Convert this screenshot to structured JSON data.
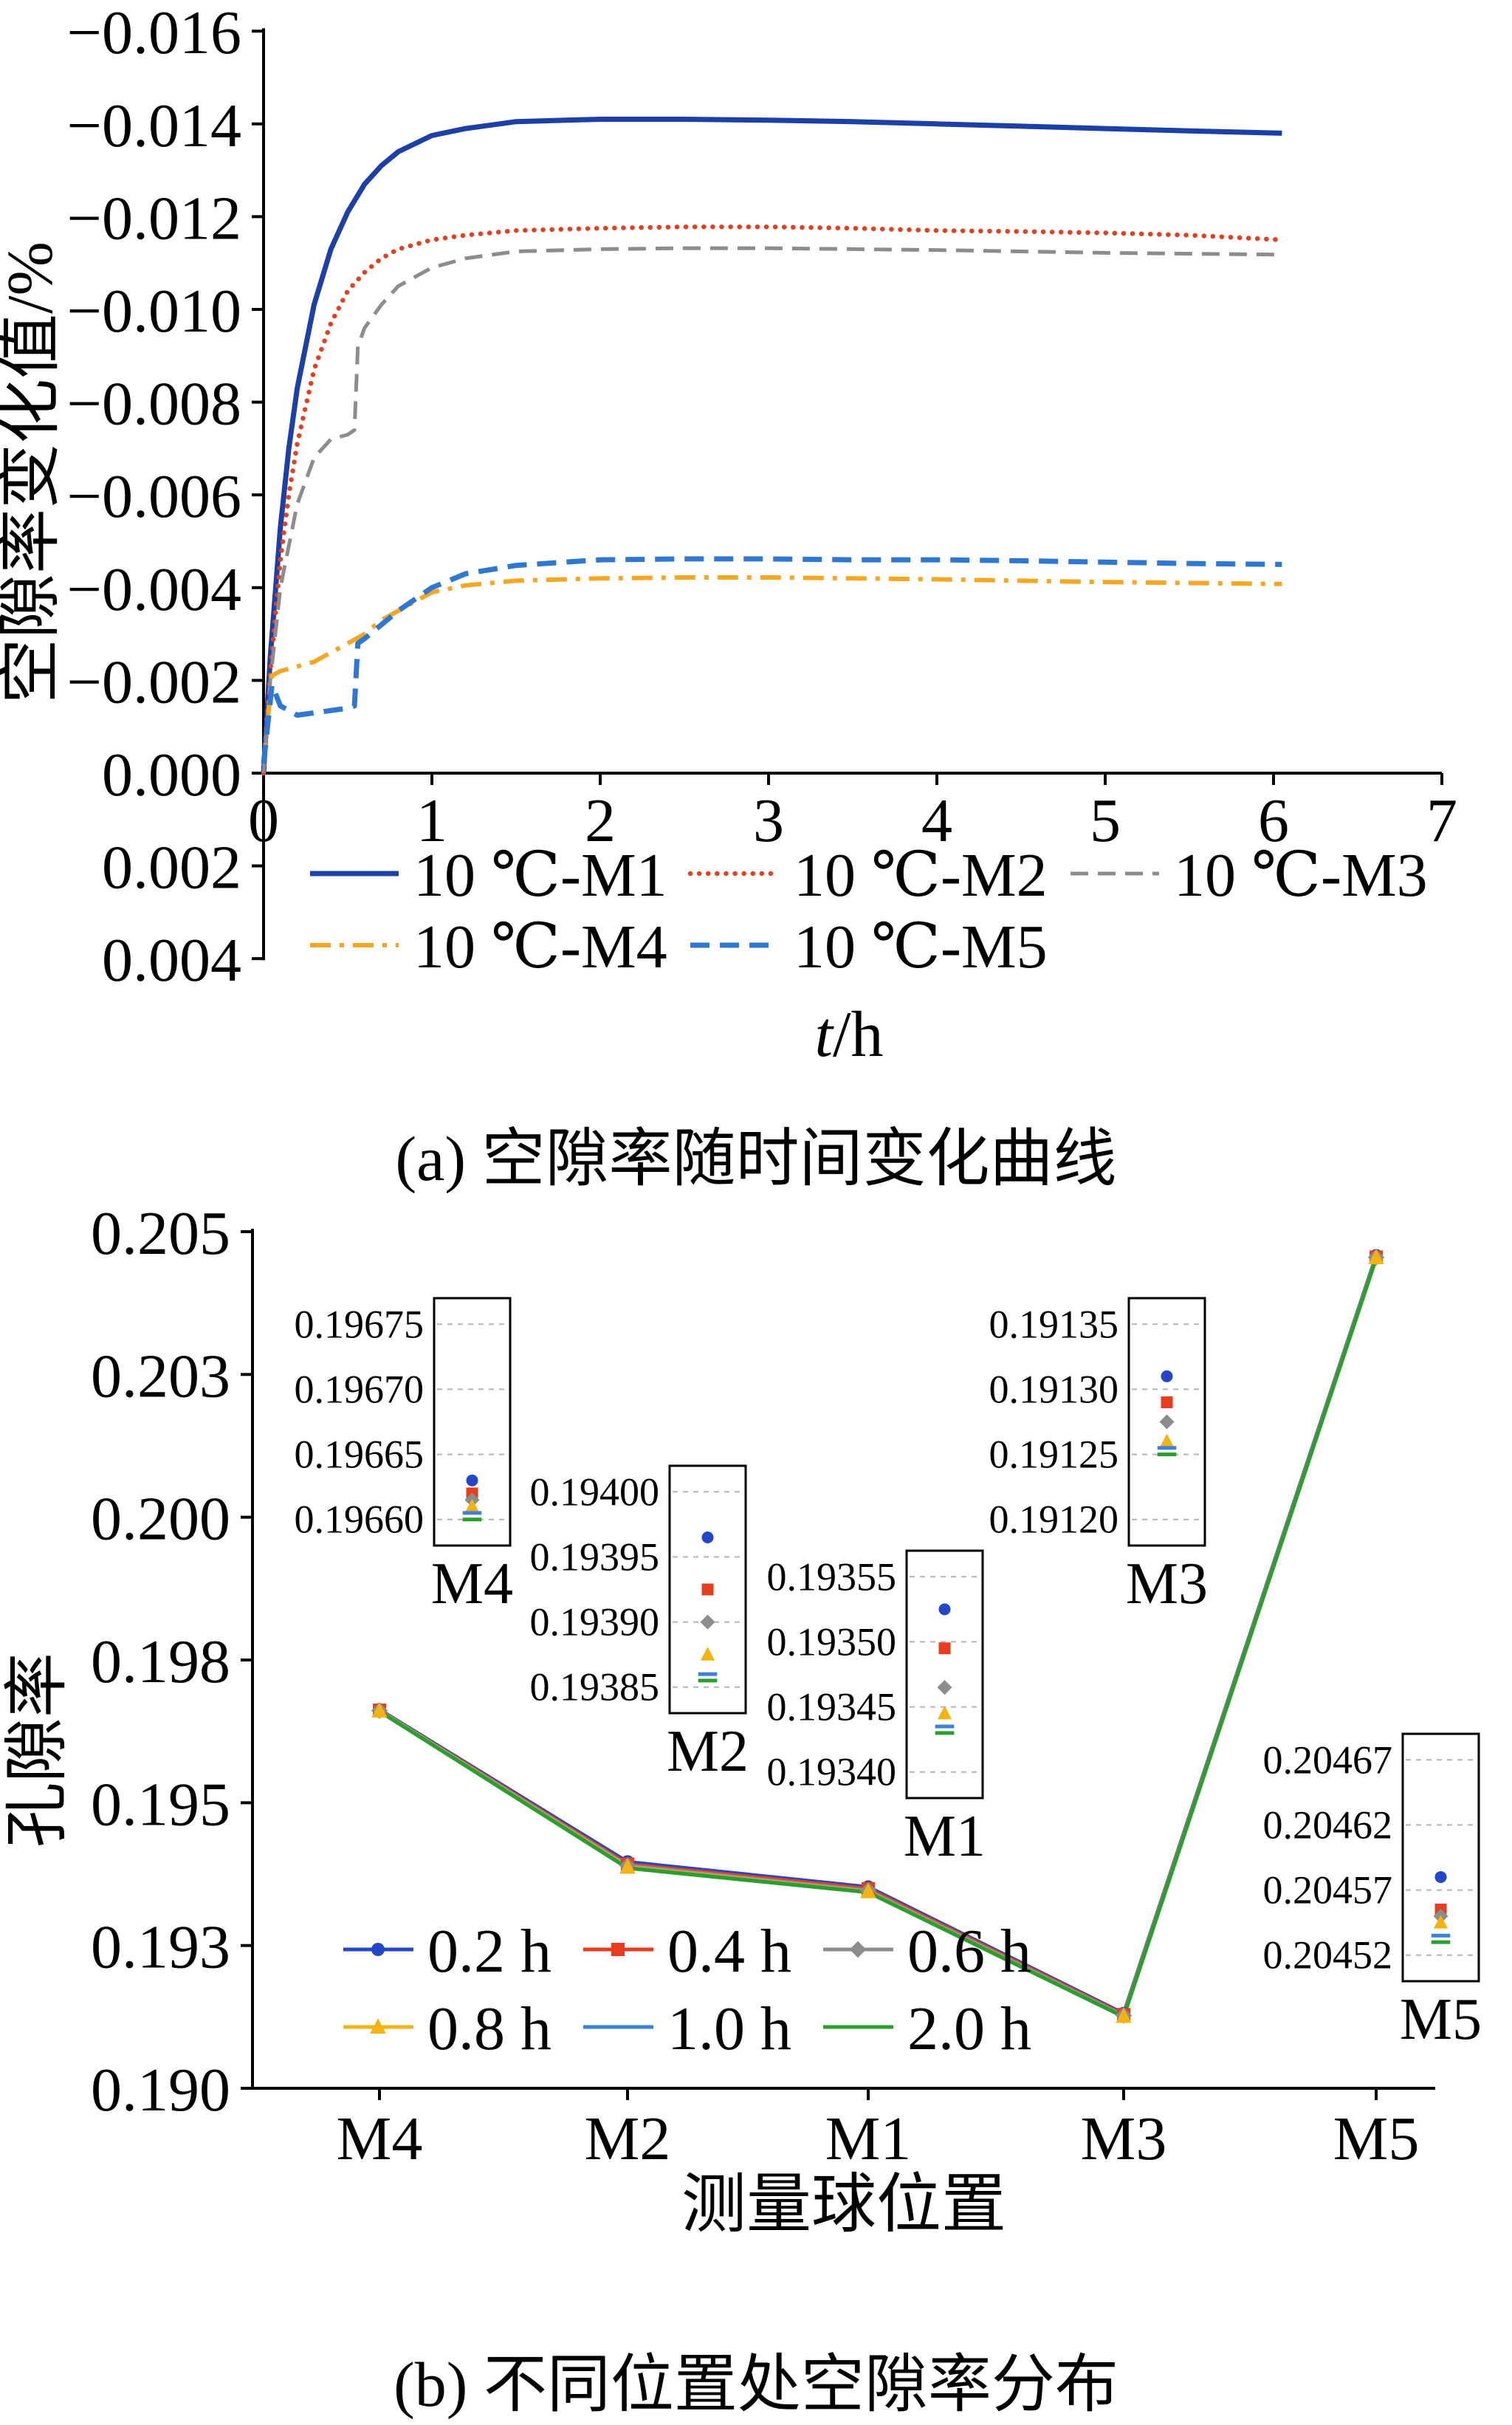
{
  "page": {
    "background": "#ffffff"
  },
  "captions": {
    "a": "(a) 空隙率随时间变化曲线",
    "b": "(b) 不同位置处空隙率分布"
  },
  "chart_data": [
    {
      "type": "line",
      "name": "porosity-change-vs-time",
      "ylabel": "空隙率变化值/%",
      "xlabel_parts": [
        {
          "text": "t",
          "italic": true
        },
        {
          "text": "/h",
          "italic": false
        }
      ],
      "xlim": [
        0,
        7
      ],
      "y_axis_inverted": true,
      "x_ticks": [
        0,
        1,
        2,
        3,
        4,
        5,
        6,
        7
      ],
      "y_ticks": [
        {
          "v": -0.016,
          "label": "−0.016"
        },
        {
          "v": -0.014,
          "label": "−0.014"
        },
        {
          "v": -0.012,
          "label": "−0.012"
        },
        {
          "v": -0.01,
          "label": "−0.010"
        },
        {
          "v": -0.008,
          "label": "−0.008"
        },
        {
          "v": -0.006,
          "label": "−0.006"
        },
        {
          "v": -0.004,
          "label": "−0.004"
        },
        {
          "v": -0.002,
          "label": "−0.002"
        },
        {
          "v": 0.0,
          "label": "0.000"
        },
        {
          "v": 0.002,
          "label": "0.002"
        },
        {
          "v": 0.004,
          "label": "0.004"
        }
      ],
      "series": [
        {
          "name": "10 ℃-M1",
          "color": "#1c3fa8",
          "style": "solid",
          "width": 7,
          "points": [
            [
              0,
              0
            ],
            [
              0.04,
              -0.0025
            ],
            [
              0.1,
              -0.0053
            ],
            [
              0.15,
              -0.007
            ],
            [
              0.2,
              -0.0083
            ],
            [
              0.3,
              -0.0101
            ],
            [
              0.4,
              -0.0113
            ],
            [
              0.5,
              -0.0121
            ],
            [
              0.6,
              -0.0127
            ],
            [
              0.7,
              -0.0131
            ],
            [
              0.8,
              -0.0134
            ],
            [
              1.0,
              -0.01375
            ],
            [
              1.2,
              -0.0139
            ],
            [
              1.5,
              -0.01405
            ],
            [
              2.0,
              -0.0141
            ],
            [
              2.5,
              -0.0141
            ],
            [
              3.0,
              -0.01408
            ],
            [
              3.5,
              -0.01405
            ],
            [
              4.0,
              -0.014
            ],
            [
              4.5,
              -0.01395
            ],
            [
              5.0,
              -0.0139
            ],
            [
              5.5,
              -0.01385
            ],
            [
              6.05,
              -0.0138
            ]
          ]
        },
        {
          "name": "10 ℃-M2",
          "color": "#e34020",
          "style": "dotted",
          "width": 6.5,
          "points": [
            [
              0,
              0
            ],
            [
              0.04,
              -0.0022
            ],
            [
              0.1,
              -0.0046
            ],
            [
              0.15,
              -0.006
            ],
            [
              0.2,
              -0.0071
            ],
            [
              0.3,
              -0.0087
            ],
            [
              0.4,
              -0.0097
            ],
            [
              0.5,
              -0.0104
            ],
            [
              0.6,
              -0.0108
            ],
            [
              0.7,
              -0.0111
            ],
            [
              0.8,
              -0.0113
            ],
            [
              1.0,
              -0.0115
            ],
            [
              1.2,
              -0.0116
            ],
            [
              1.5,
              -0.0117
            ],
            [
              2.0,
              -0.01175
            ],
            [
              2.5,
              -0.01178
            ],
            [
              3.0,
              -0.01178
            ],
            [
              3.5,
              -0.01175
            ],
            [
              4.0,
              -0.0117
            ],
            [
              4.5,
              -0.01168
            ],
            [
              5.0,
              -0.01165
            ],
            [
              5.5,
              -0.0116
            ],
            [
              6.05,
              -0.0115
            ]
          ]
        },
        {
          "name": "10 ℃-M3",
          "color": "#8c8c8c",
          "style": "dashed",
          "width": 5,
          "points": [
            [
              0,
              0
            ],
            [
              0.04,
              -0.002
            ],
            [
              0.1,
              -0.004
            ],
            [
              0.2,
              -0.0058
            ],
            [
              0.3,
              -0.0068
            ],
            [
              0.4,
              -0.0072
            ],
            [
              0.5,
              -0.0073
            ],
            [
              0.54,
              -0.0074
            ],
            [
              0.56,
              -0.0092
            ],
            [
              0.6,
              -0.0096
            ],
            [
              0.7,
              -0.0101
            ],
            [
              0.8,
              -0.0105
            ],
            [
              1.0,
              -0.0109
            ],
            [
              1.2,
              -0.0111
            ],
            [
              1.5,
              -0.01125
            ],
            [
              2.0,
              -0.0113
            ],
            [
              2.5,
              -0.01132
            ],
            [
              3.0,
              -0.01132
            ],
            [
              3.5,
              -0.0113
            ],
            [
              4.0,
              -0.01128
            ],
            [
              4.5,
              -0.01125
            ],
            [
              5.0,
              -0.01122
            ],
            [
              5.5,
              -0.0112
            ],
            [
              6.05,
              -0.01118
            ]
          ]
        },
        {
          "name": "10 ℃-M4",
          "color": "#f5a623",
          "style": "dashdot",
          "width": 6,
          "points": [
            [
              0,
              -0.0002
            ],
            [
              0.05,
              -0.0021
            ],
            [
              0.1,
              -0.0022
            ],
            [
              0.2,
              -0.0023
            ],
            [
              0.3,
              -0.0024
            ],
            [
              0.4,
              -0.0026
            ],
            [
              0.5,
              -0.0028
            ],
            [
              0.6,
              -0.003
            ],
            [
              0.7,
              -0.0033
            ],
            [
              0.8,
              -0.0035
            ],
            [
              0.9,
              -0.0037
            ],
            [
              1.0,
              -0.0039
            ],
            [
              1.2,
              -0.00405
            ],
            [
              1.5,
              -0.00415
            ],
            [
              2.0,
              -0.0042
            ],
            [
              2.5,
              -0.00422
            ],
            [
              3.0,
              -0.00422
            ],
            [
              3.5,
              -0.0042
            ],
            [
              4.0,
              -0.00418
            ],
            [
              4.5,
              -0.00415
            ],
            [
              5.0,
              -0.00412
            ],
            [
              5.5,
              -0.0041
            ],
            [
              6.05,
              -0.00408
            ]
          ]
        },
        {
          "name": "10 ℃-M5",
          "color": "#2e78d2",
          "style": "dashed2",
          "width": 7,
          "points": [
            [
              0,
              -0.0002
            ],
            [
              0.05,
              -0.0019
            ],
            [
              0.1,
              -0.00145
            ],
            [
              0.2,
              -0.00125
            ],
            [
              0.3,
              -0.0013
            ],
            [
              0.4,
              -0.00135
            ],
            [
              0.5,
              -0.0014
            ],
            [
              0.54,
              -0.00145
            ],
            [
              0.56,
              -0.0028
            ],
            [
              0.6,
              -0.0029
            ],
            [
              0.7,
              -0.0032
            ],
            [
              0.8,
              -0.0035
            ],
            [
              1.0,
              -0.004
            ],
            [
              1.2,
              -0.0043
            ],
            [
              1.5,
              -0.00448
            ],
            [
              2.0,
              -0.0046
            ],
            [
              2.5,
              -0.00462
            ],
            [
              3.0,
              -0.00462
            ],
            [
              3.5,
              -0.0046
            ],
            [
              4.0,
              -0.0046
            ],
            [
              4.5,
              -0.00458
            ],
            [
              5.0,
              -0.00455
            ],
            [
              5.5,
              -0.00452
            ],
            [
              6.05,
              -0.0045
            ]
          ]
        }
      ]
    },
    {
      "type": "line",
      "name": "porosity-distribution-by-position",
      "ylabel": "孔隙率",
      "xlabel": "测量球位置",
      "categories": [
        "M4",
        "M2",
        "M1",
        "M3",
        "M5"
      ],
      "ylim": [
        0.19,
        0.205
      ],
      "y_ticks": [
        {
          "v": 0.205,
          "label": "0.205"
        },
        {
          "v": 0.2025,
          "label": "0.203"
        },
        {
          "v": 0.2,
          "label": "0.200"
        },
        {
          "v": 0.1975,
          "label": "0.198"
        },
        {
          "v": 0.195,
          "label": "0.195"
        },
        {
          "v": 0.1925,
          "label": "0.193"
        },
        {
          "v": 0.19,
          "label": "0.190"
        }
      ],
      "series": [
        {
          "name": "0.2 h",
          "color": "#2446c8",
          "marker": "circle",
          "values": [
            0.19663,
            0.193965,
            0.193525,
            0.19131,
            0.20458
          ]
        },
        {
          "name": "0.4 h",
          "color": "#e83c1e",
          "marker": "square",
          "values": [
            0.19662,
            0.193925,
            0.193495,
            0.19129,
            0.204555
          ]
        },
        {
          "name": "0.6 h",
          "color": "#8c8c8c",
          "marker": "diamond",
          "values": [
            0.196615,
            0.1939,
            0.193465,
            0.191275,
            0.20455
          ]
        },
        {
          "name": "0.8 h",
          "color": "#f2b313",
          "marker": "triangle",
          "values": [
            0.19661,
            0.193875,
            0.193445,
            0.19126,
            0.204545
          ]
        },
        {
          "name": "1.0 h",
          "color": "#3c80d8",
          "marker": "line",
          "values": [
            0.196605,
            0.19386,
            0.193435,
            0.191255,
            0.204535
          ]
        },
        {
          "name": "2.0 h",
          "color": "#2aa02c",
          "marker": "line",
          "values": [
            0.1966,
            0.193855,
            0.19343,
            0.19125,
            0.20453
          ]
        }
      ],
      "inset_label_color": "#e60000",
      "insets": [
        {
          "label": "M4",
          "ticks": [
            {
              "v": 0.19675,
              "label": "0.19675"
            },
            {
              "v": 0.1967,
              "label": "0.19670"
            },
            {
              "v": 0.19665,
              "label": "0.19665"
            },
            {
              "v": 0.1966,
              "label": "0.19660"
            }
          ]
        },
        {
          "label": "M2",
          "ticks": [
            {
              "v": 0.194,
              "label": "0.19400"
            },
            {
              "v": 0.19395,
              "label": "0.19395"
            },
            {
              "v": 0.1939,
              "label": "0.19390"
            },
            {
              "v": 0.19385,
              "label": "0.19385"
            }
          ]
        },
        {
          "label": "M1",
          "ticks": [
            {
              "v": 0.19355,
              "label": "0.19355"
            },
            {
              "v": 0.1935,
              "label": "0.19350"
            },
            {
              "v": 0.19345,
              "label": "0.19345"
            },
            {
              "v": 0.1934,
              "label": "0.19340"
            }
          ]
        },
        {
          "label": "M3",
          "ticks": [
            {
              "v": 0.19135,
              "label": "0.19135"
            },
            {
              "v": 0.1913,
              "label": "0.19130"
            },
            {
              "v": 0.19125,
              "label": "0.19125"
            },
            {
              "v": 0.1912,
              "label": "0.19120"
            }
          ]
        },
        {
          "label": "M5",
          "ticks": [
            {
              "v": 0.20467,
              "label": "0.20467"
            },
            {
              "v": 0.20462,
              "label": "0.20462"
            },
            {
              "v": 0.20457,
              "label": "0.20457"
            },
            {
              "v": 0.20452,
              "label": "0.20452"
            }
          ]
        }
      ]
    }
  ]
}
